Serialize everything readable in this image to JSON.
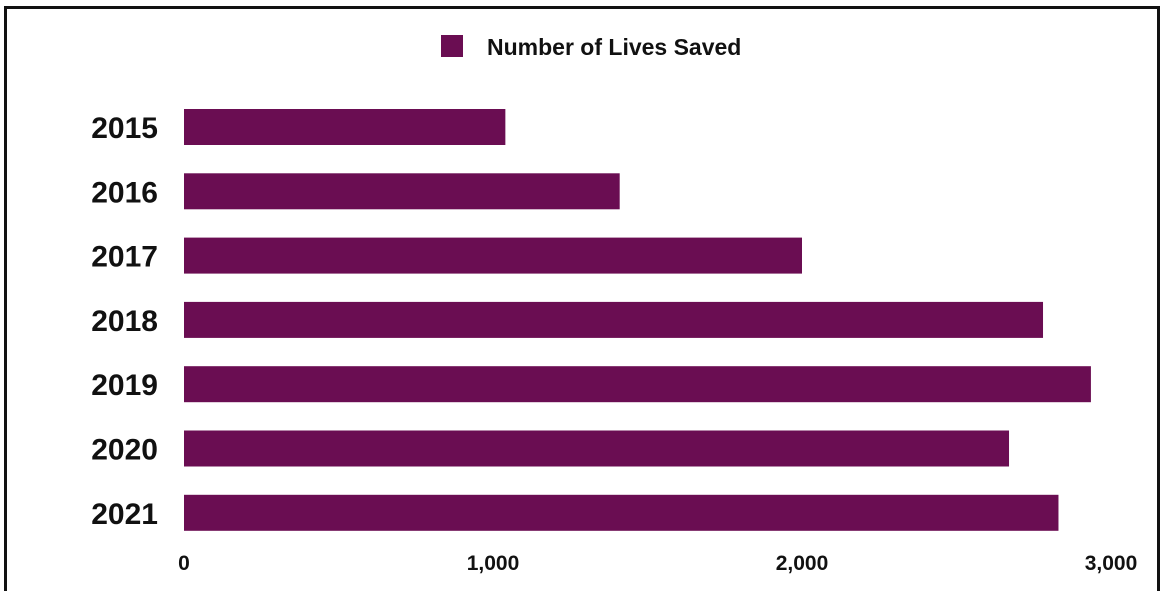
{
  "chart_data": {
    "type": "bar",
    "orientation": "horizontal",
    "categories": [
      "2015",
      "2016",
      "2017",
      "2018",
      "2019",
      "2020",
      "2021"
    ],
    "series": [
      {
        "name": "Number of Lives Saved",
        "color": "#6a0d52",
        "values": [
          1040,
          1410,
          2000,
          2780,
          2935,
          2670,
          2830
        ]
      }
    ],
    "xlim": [
      0,
      3000
    ],
    "xticks": [
      0,
      1000,
      2000,
      3000
    ],
    "xtick_labels": [
      "0",
      "1,000",
      "2,000",
      "3,000"
    ],
    "grid": false,
    "legend_position": "top-center"
  }
}
